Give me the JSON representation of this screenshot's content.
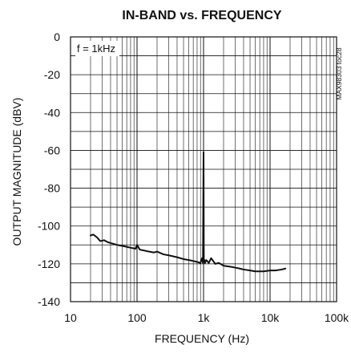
{
  "chart_data": {
    "type": "line",
    "title": "IN-BAND vs. FREQUENCY",
    "xlabel": "FREQUENCY (Hz)",
    "ylabel": "OUTPUT MAGNITUDE (dBV)",
    "x_scale": "log",
    "xlim": [
      10,
      100000
    ],
    "ylim": [
      -140,
      0
    ],
    "grid": true,
    "x_ticks": [
      {
        "value": 10,
        "label": "10"
      },
      {
        "value": 100,
        "label": "100"
      },
      {
        "value": 1000,
        "label": "1k"
      },
      {
        "value": 10000,
        "label": "10k"
      },
      {
        "value": 100000,
        "label": "100k"
      }
    ],
    "y_ticks": [
      {
        "value": 0,
        "label": "0"
      },
      {
        "value": -20,
        "label": "-20"
      },
      {
        "value": -40,
        "label": "-40"
      },
      {
        "value": -60,
        "label": "-60"
      },
      {
        "value": -80,
        "label": "-80"
      },
      {
        "value": -100,
        "label": "-100"
      },
      {
        "value": -120,
        "label": "-120"
      },
      {
        "value": -140,
        "label": "-140"
      }
    ],
    "annotation": "f = 1kHz",
    "side_text": "MAX98303 toc28",
    "series": [
      {
        "x": [
          20,
          22,
          25,
          28,
          32,
          36,
          40,
          45,
          50,
          60,
          70,
          80,
          95,
          100,
          110,
          130,
          150,
          180,
          200,
          250,
          300,
          400,
          500,
          600,
          700,
          800,
          900,
          950,
          980,
          1000,
          1010,
          1020,
          1030,
          1050,
          1100,
          1200,
          1300,
          1500,
          1700,
          2000,
          2500,
          3000,
          3500,
          4000,
          5000,
          6000,
          8000,
          10000,
          12000,
          15000,
          17000
        ],
        "y": [
          -105,
          -104.5,
          -106,
          -108,
          -107.5,
          -108.5,
          -109,
          -109.5,
          -110,
          -110.5,
          -111,
          -111.5,
          -112,
          -110,
          -112.5,
          -113,
          -113.5,
          -114,
          -113.5,
          -115,
          -115.5,
          -116.5,
          -117.5,
          -118,
          -118.5,
          -119,
          -119.5,
          -117,
          -119.5,
          -61,
          -117,
          -119,
          -118,
          -119.5,
          -118,
          -119.5,
          -117,
          -120,
          -119.5,
          -121,
          -121.5,
          -122,
          -122.5,
          -123,
          -123.5,
          -124,
          -124,
          -123.5,
          -123.5,
          -123,
          -122.5
        ]
      }
    ],
    "colors": {
      "line": "#111111",
      "grid": "#111111",
      "background": "#ffffff"
    }
  }
}
